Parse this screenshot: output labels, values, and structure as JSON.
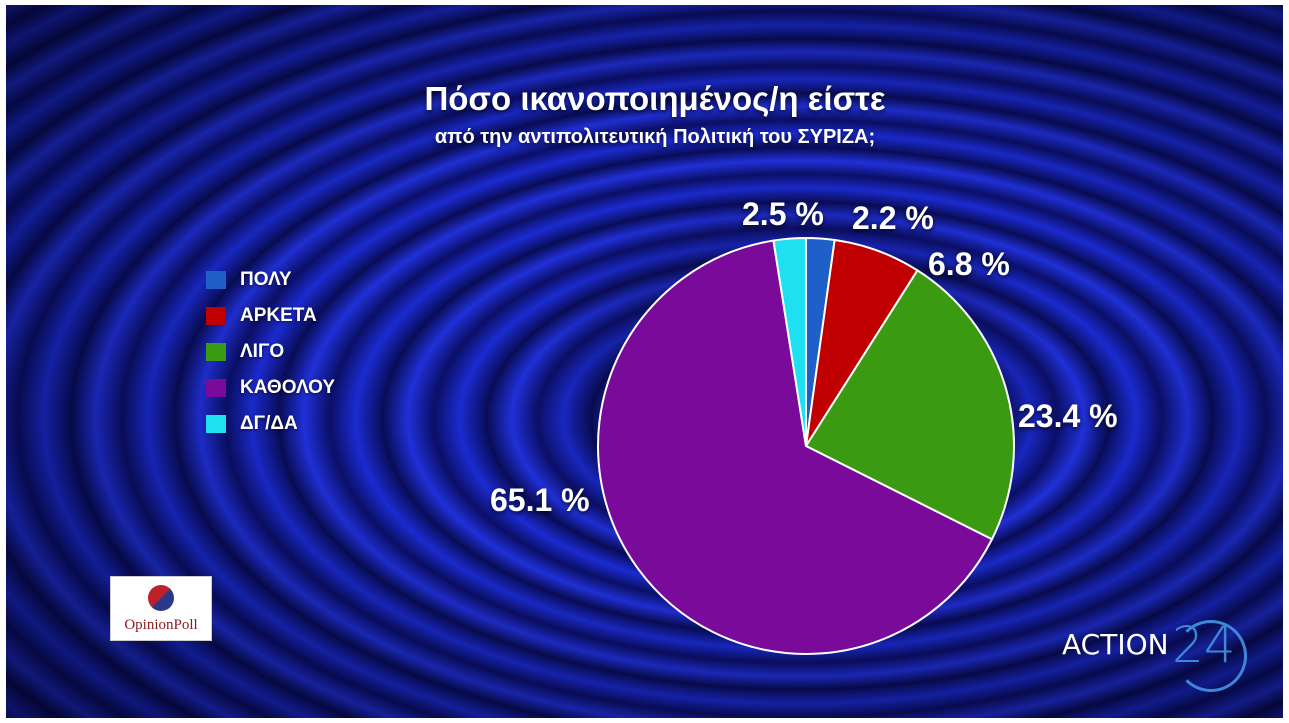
{
  "chart_data": {
    "type": "pie",
    "title": "Πόσο ικανοποιημένος/η είστε",
    "subtitle": "από την αντιπολιτευτική Πολιτική του ΣΥΡΙΖΑ;",
    "legend_position": "left",
    "slices": [
      {
        "label": "ΠΟΛΥ",
        "value": 2.2,
        "value_label": "2.2 %",
        "color": "#1f5fc8"
      },
      {
        "label": "ΑΡΚΕΤΑ",
        "value": 6.8,
        "value_label": "6.8 %",
        "color": "#c00000"
      },
      {
        "label": "ΛΙΓΟ",
        "value": 23.4,
        "value_label": "23.4 %",
        "color": "#3a9a12"
      },
      {
        "label": "ΚΑΘΟΛΟΥ",
        "value": 65.1,
        "value_label": "65.1 %",
        "color": "#7a0a9a"
      },
      {
        "label": "ΔΓ/ΔΑ",
        "value": 2.5,
        "value_label": "2.5 %",
        "color": "#1ee0f0"
      }
    ]
  },
  "logos": {
    "pollster": "OpinionPoll",
    "channel_text": "ACTION",
    "channel_number": "24"
  }
}
